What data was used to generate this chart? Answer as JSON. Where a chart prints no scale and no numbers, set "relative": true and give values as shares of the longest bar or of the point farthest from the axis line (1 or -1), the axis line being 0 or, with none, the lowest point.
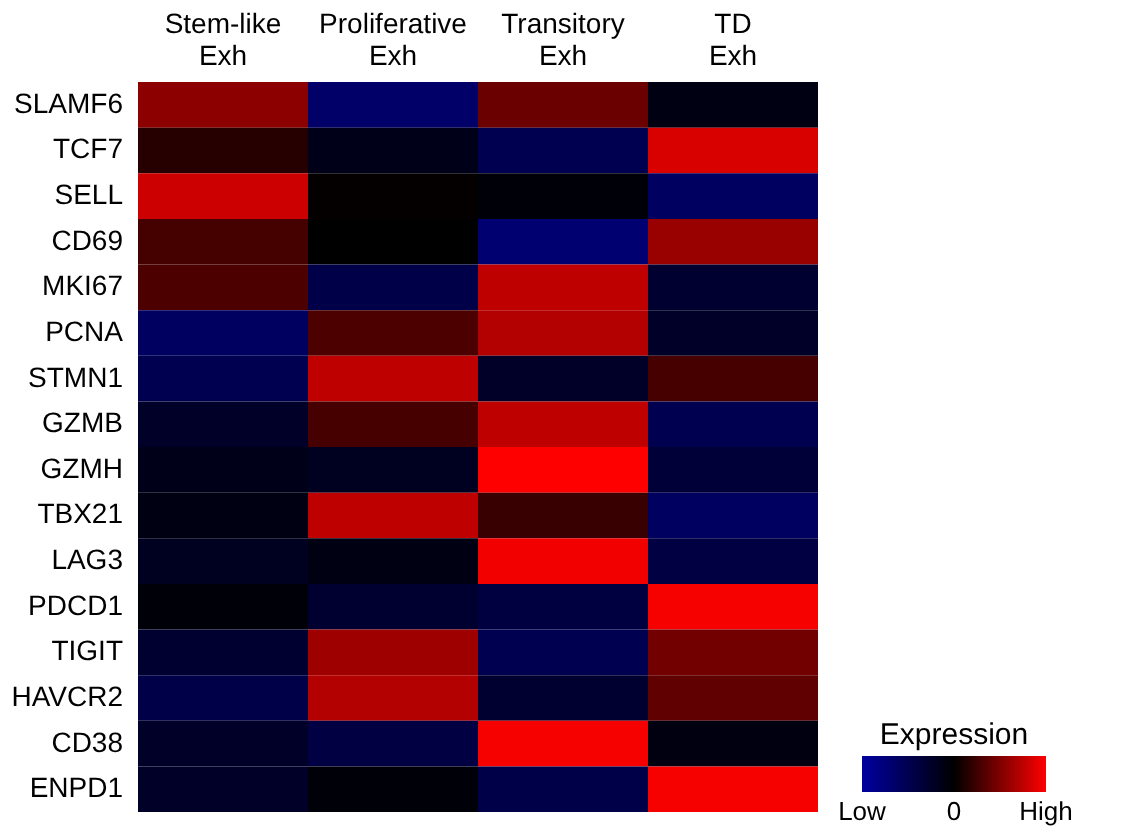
{
  "chart_data": {
    "type": "heatmap",
    "legend_title": "Expression",
    "relative": true,
    "categories": [
      "Stem-like Exh",
      "Proliferative Exh",
      "Transitory Exh",
      "TD Exh"
    ],
    "y_categories": [
      "SLAMF6",
      "TCF7",
      "SELL",
      "CD69",
      "MKI67",
      "PCNA",
      "STMN1",
      "GZMB",
      "GZMH",
      "TBX21",
      "LAG3",
      "PDCD1",
      "TIGIT",
      "HAVCR2",
      "CD38",
      "ENPD1"
    ],
    "cells": [
      [
        0.55,
        -0.65,
        0.42,
        -0.12
      ],
      [
        0.15,
        -0.15,
        -0.5,
        0.85
      ],
      [
        0.8,
        0.02,
        -0.05,
        -0.6
      ],
      [
        0.27,
        0,
        -0.7,
        0.6
      ],
      [
        0.3,
        -0.45,
        0.75,
        -0.3
      ],
      [
        -0.6,
        0.3,
        0.7,
        -0.25
      ],
      [
        -0.5,
        0.75,
        -0.25,
        0.28
      ],
      [
        -0.25,
        0.28,
        0.75,
        -0.5
      ],
      [
        -0.15,
        -0.2,
        1,
        -0.35
      ],
      [
        -0.12,
        0.75,
        0.22,
        -0.6
      ],
      [
        -0.2,
        -0.12,
        0.95,
        -0.42
      ],
      [
        -0.05,
        -0.3,
        -0.4,
        0.97
      ],
      [
        -0.3,
        0.62,
        -0.5,
        0.45
      ],
      [
        -0.45,
        0.7,
        -0.3,
        0.38
      ],
      [
        -0.25,
        -0.42,
        0.97,
        -0.1
      ],
      [
        -0.25,
        -0.05,
        -0.45,
        0.97
      ]
    ],
    "cticks": [
      {
        "value": -1,
        "label": "Low"
      },
      0,
      {
        "value": 1,
        "label": "High"
      }
    ],
    "colors": [
      "#0000a0",
      "#000000",
      "#ff0000"
    ]
  }
}
